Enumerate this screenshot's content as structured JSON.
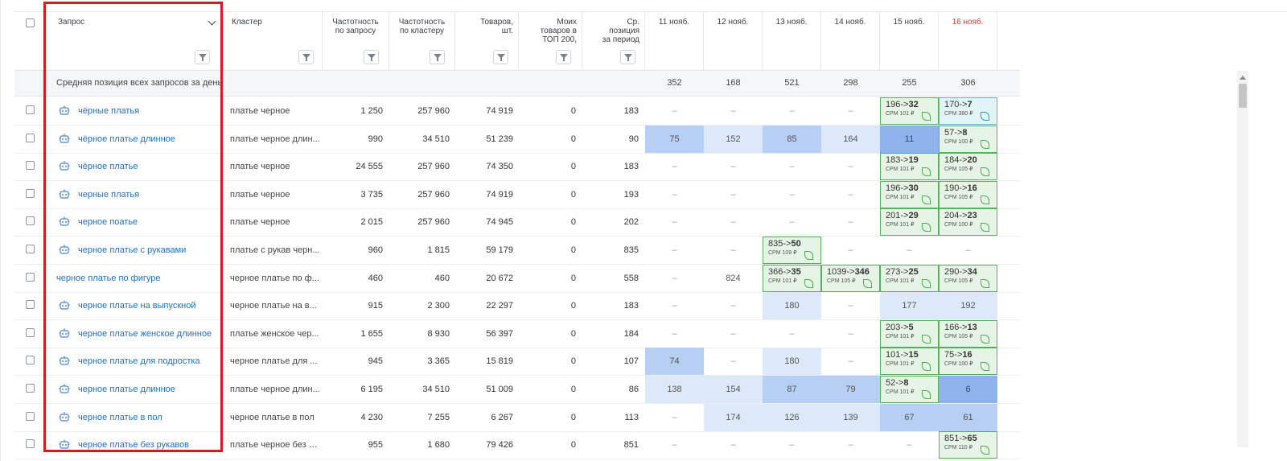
{
  "header": {
    "query": "Запрос",
    "cluster": "Кластер",
    "freq_query": "Частотность по запросу",
    "freq_cluster": "Частотность по кластеру",
    "goods": "Товаров, шт.",
    "my_goods": "Моих товаров в ТОП 200,",
    "avg_pos": "Ср. позиция за период",
    "dates": [
      "11 нояб.",
      "12 нояб.",
      "13 нояб.",
      "14 нояб.",
      "15 нояб.",
      "16 нояб."
    ],
    "today_color": "#e53935"
  },
  "avg_row": {
    "label": "Средняя позиция всех запросов за день",
    "values": [
      "352",
      "168",
      "521",
      "298",
      "255",
      "306"
    ]
  },
  "rows": [
    {
      "query": "чёрные платья",
      "cluster": "платье черное",
      "fq": "1 250",
      "fc": "257 960",
      "goods": "74 919",
      "my": "0",
      "avg": "183",
      "days": [
        {
          "t": "–"
        },
        {
          "t": "–"
        },
        {
          "t": "–"
        },
        {
          "t": "–"
        },
        {
          "t": "g",
          "from": "196->",
          "to": "32",
          "cpm": "CPM 101 ₽"
        },
        {
          "t": "t",
          "from": "170->",
          "to": "7",
          "cpm": "CPM 380 ₽"
        }
      ]
    },
    {
      "query": "чёрное платье длинное",
      "cluster": "платье черное длин...",
      "fq": "990",
      "fc": "34 510",
      "goods": "51 239",
      "my": "0",
      "avg": "90",
      "days": [
        {
          "t": "b2",
          "v": "75"
        },
        {
          "t": "b1",
          "v": "152"
        },
        {
          "t": "b2",
          "v": "85"
        },
        {
          "t": "b1",
          "v": "164"
        },
        {
          "t": "b3",
          "v": "11"
        },
        {
          "t": "g",
          "from": "57->",
          "to": "8",
          "cpm": "CPM 100 ₽"
        }
      ]
    },
    {
      "query": "чёрное платье",
      "cluster": "платье черное",
      "fq": "24 555",
      "fc": "257 960",
      "goods": "74 350",
      "my": "0",
      "avg": "183",
      "days": [
        {
          "t": "–"
        },
        {
          "t": "–"
        },
        {
          "t": "–"
        },
        {
          "t": "–"
        },
        {
          "t": "g",
          "from": "183->",
          "to": "19",
          "cpm": "CPM 101 ₽"
        },
        {
          "t": "g",
          "from": "184->",
          "to": "20",
          "cpm": "CPM 105 ₽"
        }
      ]
    },
    {
      "query": "черные платья",
      "cluster": "платье черное",
      "fq": "3 735",
      "fc": "257 960",
      "goods": "74 919",
      "my": "0",
      "avg": "193",
      "days": [
        {
          "t": "–"
        },
        {
          "t": "–"
        },
        {
          "t": "–"
        },
        {
          "t": "–"
        },
        {
          "t": "g",
          "from": "196->",
          "to": "30",
          "cpm": "CPM 101 ₽"
        },
        {
          "t": "g",
          "from": "190->",
          "to": "16",
          "cpm": "CPM 105 ₽"
        }
      ]
    },
    {
      "query": "черное поатье",
      "cluster": "платье черное",
      "fq": "2 015",
      "fc": "257 960",
      "goods": "74 945",
      "my": "0",
      "avg": "202",
      "days": [
        {
          "t": "–"
        },
        {
          "t": "–"
        },
        {
          "t": "–"
        },
        {
          "t": "–"
        },
        {
          "t": "g",
          "from": "201->",
          "to": "29",
          "cpm": "CPM 101 ₽"
        },
        {
          "t": "g",
          "from": "204->",
          "to": "23",
          "cpm": "CPM 100 ₽"
        }
      ]
    },
    {
      "query": "черное платье с рукавами",
      "cluster": "платье с рукав черн...",
      "fq": "960",
      "fc": "1 815",
      "goods": "59 179",
      "my": "0",
      "avg": "835",
      "days": [
        {
          "t": "–"
        },
        {
          "t": "–"
        },
        {
          "t": "g",
          "from": "835->",
          "to": "50",
          "cpm": "CPM 109 ₽"
        },
        {
          "t": "–"
        },
        {
          "t": "–"
        },
        {
          "t": "–"
        }
      ]
    },
    {
      "query": "черное платье по фигуре",
      "nobot": true,
      "cluster": "черное платье по ф...",
      "fq": "460",
      "fc": "460",
      "goods": "20 672",
      "my": "0",
      "avg": "558",
      "days": [
        {
          "t": "–"
        },
        {
          "t": "n",
          "v": "824"
        },
        {
          "t": "g",
          "from": "366->",
          "to": "35",
          "cpm": "CPM 101 ₽"
        },
        {
          "t": "g",
          "from": "1039->",
          "to": "346",
          "cpm": "CPM 105 ₽"
        },
        {
          "t": "g",
          "from": "273->",
          "to": "25",
          "cpm": "CPM 101 ₽"
        },
        {
          "t": "g",
          "from": "290->",
          "to": "34",
          "cpm": "CPM 105 ₽"
        }
      ]
    },
    {
      "query": "черное платье на выпускной",
      "cluster": "черное платье на в...",
      "fq": "915",
      "fc": "2 300",
      "goods": "22 297",
      "my": "0",
      "avg": "183",
      "days": [
        {
          "t": "–"
        },
        {
          "t": "–"
        },
        {
          "t": "b1",
          "v": "180"
        },
        {
          "t": "–"
        },
        {
          "t": "b1",
          "v": "177"
        },
        {
          "t": "b1",
          "v": "192"
        }
      ]
    },
    {
      "query": "черное платье женское длинное",
      "cluster": "платье женское чер...",
      "fq": "1 655",
      "fc": "8 930",
      "goods": "56 397",
      "my": "0",
      "avg": "184",
      "days": [
        {
          "t": "–"
        },
        {
          "t": "–"
        },
        {
          "t": "–"
        },
        {
          "t": "–"
        },
        {
          "t": "g",
          "from": "203->",
          "to": "5",
          "cpm": "CPM 101 ₽"
        },
        {
          "t": "g",
          "from": "166->",
          "to": "13",
          "cpm": "CPM 105 ₽"
        }
      ]
    },
    {
      "query": "черное платье для подростка",
      "cluster": "черное платье для ...",
      "fq": "945",
      "fc": "3 365",
      "goods": "15 819",
      "my": "0",
      "avg": "107",
      "days": [
        {
          "t": "b2",
          "v": "74"
        },
        {
          "t": "–"
        },
        {
          "t": "b1",
          "v": "180"
        },
        {
          "t": "–"
        },
        {
          "t": "g",
          "from": "101->",
          "to": "15",
          "cpm": "CPM 101 ₽"
        },
        {
          "t": "g",
          "from": "75->",
          "to": "16",
          "cpm": "CPM 100 ₽"
        }
      ]
    },
    {
      "query": "черное платье длинное",
      "cluster": "платье черное длин...",
      "fq": "6 195",
      "fc": "34 510",
      "goods": "51 009",
      "my": "0",
      "avg": "86",
      "days": [
        {
          "t": "b1",
          "v": "138"
        },
        {
          "t": "b1",
          "v": "154"
        },
        {
          "t": "b2",
          "v": "87"
        },
        {
          "t": "b2",
          "v": "79"
        },
        {
          "t": "g",
          "from": "52->",
          "to": "8",
          "cpm": "CPM 101 ₽"
        },
        {
          "t": "b3",
          "v": "6"
        }
      ]
    },
    {
      "query": "черное платье в пол",
      "cluster": "черное платье в пол",
      "fq": "4 230",
      "fc": "7 255",
      "goods": "6 267",
      "my": "0",
      "avg": "113",
      "days": [
        {
          "t": "–"
        },
        {
          "t": "b1",
          "v": "174"
        },
        {
          "t": "b1",
          "v": "126"
        },
        {
          "t": "b1",
          "v": "139"
        },
        {
          "t": "b2",
          "v": "67"
        },
        {
          "t": "b2",
          "v": "61"
        }
      ]
    },
    {
      "query": "черное платье без рукавов",
      "cluster": "платье черное без р...",
      "fq": "955",
      "fc": "1 680",
      "goods": "79 426",
      "my": "0",
      "avg": "851",
      "days": [
        {
          "t": "–"
        },
        {
          "t": "–"
        },
        {
          "t": "–"
        },
        {
          "t": "–"
        },
        {
          "t": "–"
        },
        {
          "t": "g",
          "from": "851->",
          "to": "65",
          "cpm": "CPM 110 ₽"
        }
      ]
    }
  ]
}
